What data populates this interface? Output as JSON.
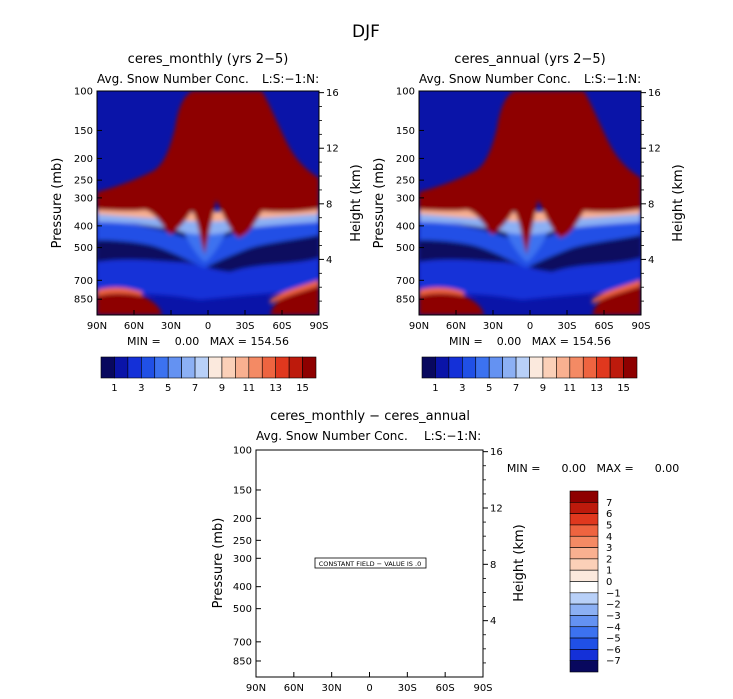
{
  "page": {
    "title": "DJF"
  },
  "panels": [
    {
      "title": "ceres_monthly (yrs 2−5)",
      "subtitle": "Avg. Snow Number Conc.",
      "units": "L:S:−1:N:",
      "ylabel_left": "Pressure (mb)",
      "ylabel_right": "Height (km)",
      "stats": "MIN =    0.00   MAX = 154.56"
    },
    {
      "title": "ceres_annual (yrs 2−5)",
      "subtitle": "Avg. Snow Number Conc.",
      "units": "L:S:−1:N:",
      "ylabel_left": "Pressure (mb)",
      "ylabel_right": "Height (km)",
      "stats": "MIN =    0.00   MAX = 154.56"
    },
    {
      "title": "ceres_monthly − ceres_annual",
      "subtitle": "Avg. Snow Number Conc.",
      "units": "L:S:−1:N:",
      "ylabel_left": "Pressure (mb)",
      "ylabel_right": "Height (km)",
      "stats": "MIN =      0.00   MAX =      0.00",
      "message": "CONSTANT FIELD − VALUE IS .0"
    }
  ],
  "chart_data": [
    {
      "type": "heatmap",
      "title": "ceres_monthly (yrs 2−5)",
      "xlabel": "",
      "ylabel": "Pressure (mb)",
      "y2label": "Height (km)",
      "x_ticks": [
        "90N",
        "60N",
        "30N",
        "0",
        "30S",
        "60S",
        "90S"
      ],
      "y_ticks": [
        100,
        150,
        200,
        250,
        300,
        400,
        500,
        700,
        850
      ],
      "y2_ticks": [
        4,
        8,
        12,
        16
      ],
      "min": 0.0,
      "max": 154.56,
      "colorbar_labels": [
        "1",
        "3",
        "5",
        "7",
        "9",
        "11",
        "13",
        "15"
      ]
    },
    {
      "type": "heatmap",
      "title": "ceres_annual (yrs 2−5)",
      "xlabel": "",
      "ylabel": "Pressure (mb)",
      "y2label": "Height (km)",
      "x_ticks": [
        "90N",
        "60N",
        "30N",
        "0",
        "30S",
        "60S",
        "90S"
      ],
      "y_ticks": [
        100,
        150,
        200,
        250,
        300,
        400,
        500,
        700,
        850
      ],
      "y2_ticks": [
        4,
        8,
        12,
        16
      ],
      "min": 0.0,
      "max": 154.56,
      "colorbar_labels": [
        "1",
        "3",
        "5",
        "7",
        "9",
        "11",
        "13",
        "15"
      ]
    },
    {
      "type": "heatmap",
      "title": "ceres_monthly − ceres_annual",
      "xlabel": "",
      "ylabel": "Pressure (mb)",
      "y2label": "Height (km)",
      "x_ticks": [
        "90N",
        "60N",
        "30N",
        "0",
        "30S",
        "60S",
        "90S"
      ],
      "y_ticks": [
        100,
        150,
        200,
        250,
        300,
        400,
        500,
        700,
        850
      ],
      "y2_ticks": [
        4,
        8,
        12,
        16
      ],
      "min": 0.0,
      "max": 0.0,
      "constant_value": 0.0,
      "colorbar_labels": [
        "7",
        "6",
        "5",
        "4",
        "3",
        "2",
        "1",
        "0",
        "−1",
        "−2",
        "−3",
        "−4",
        "−5",
        "−6",
        "−7"
      ]
    }
  ],
  "colors": {
    "scale_16": [
      "#08085e",
      "#0a14a8",
      "#1430d8",
      "#2050e6",
      "#3c72f0",
      "#6492f2",
      "#8cb0f4",
      "#b8d0f8",
      "#fbe9dd",
      "#fbd0b8",
      "#f9b090",
      "#f48a64",
      "#ee6440",
      "#e0381e",
      "#bd1a0c",
      "#8e0000"
    ],
    "scale_16_diff": [
      "#8e0000",
      "#bd1a0c",
      "#e0381e",
      "#ee6440",
      "#f48a64",
      "#f9b090",
      "#fbd0b8",
      "#fbe9dd",
      "#ffffff",
      "#b8d0f8",
      "#8cb0f4",
      "#6492f2",
      "#3c72f0",
      "#2050e6",
      "#1430d8",
      "#08085e"
    ]
  }
}
